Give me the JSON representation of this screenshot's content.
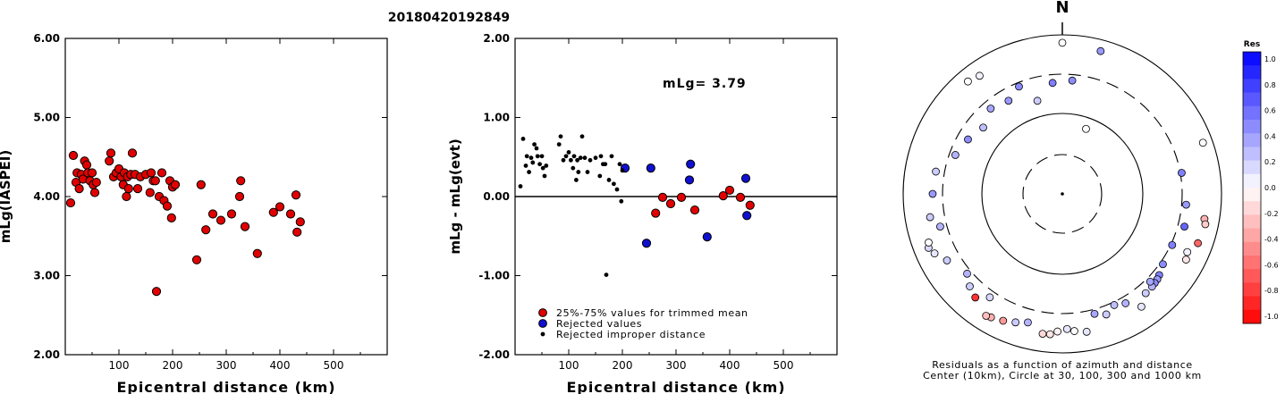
{
  "title": "20180420192849",
  "chart_data": [
    {
      "type": "scatter",
      "xlabel": "Epicentral distance (km)",
      "ylabel": "mLg(IASPEI)",
      "xlim": [
        0,
        600
      ],
      "ylim": [
        2.0,
        6.0
      ],
      "x_ticks": [
        "100",
        "200",
        "300",
        "400",
        "500"
      ],
      "y_ticks": [
        "2.00",
        "3.00",
        "4.00",
        "5.00",
        "6.00"
      ],
      "grid": false,
      "series": [
        {
          "color": "#e00000",
          "points": [
            [
              10,
              3.92
            ],
            [
              15,
              4.52
            ],
            [
              20,
              4.18
            ],
            [
              22,
              4.3
            ],
            [
              26,
              4.1
            ],
            [
              30,
              4.28
            ],
            [
              33,
              4.22
            ],
            [
              36,
              4.45
            ],
            [
              40,
              4.4
            ],
            [
              42,
              4.3
            ],
            [
              46,
              4.2
            ],
            [
              50,
              4.3
            ],
            [
              52,
              4.15
            ],
            [
              55,
              4.05
            ],
            [
              58,
              4.18
            ],
            [
              82,
              4.45
            ],
            [
              85,
              4.55
            ],
            [
              90,
              4.25
            ],
            [
              95,
              4.3
            ],
            [
              100,
              4.35
            ],
            [
              104,
              4.25
            ],
            [
              108,
              4.15
            ],
            [
              110,
              4.3
            ],
            [
              114,
              4.0
            ],
            [
              116,
              4.25
            ],
            [
              118,
              4.1
            ],
            [
              122,
              4.28
            ],
            [
              125,
              4.55
            ],
            [
              130,
              4.28
            ],
            [
              135,
              4.1
            ],
            [
              140,
              4.25
            ],
            [
              150,
              4.28
            ],
            [
              158,
              4.05
            ],
            [
              160,
              4.3
            ],
            [
              164,
              4.2
            ],
            [
              168,
              4.2
            ],
            [
              170,
              2.8
            ],
            [
              175,
              4.0
            ],
            [
              180,
              4.3
            ],
            [
              184,
              3.95
            ],
            [
              190,
              3.88
            ],
            [
              195,
              4.2
            ],
            [
              198,
              3.73
            ],
            [
              200,
              4.12
            ],
            [
              205,
              4.15
            ],
            [
              245,
              3.2
            ],
            [
              253,
              4.15
            ],
            [
              262,
              3.58
            ],
            [
              275,
              3.78
            ],
            [
              290,
              3.7
            ],
            [
              310,
              3.78
            ],
            [
              325,
              4.0
            ],
            [
              327,
              4.2
            ],
            [
              335,
              3.62
            ],
            [
              358,
              3.28
            ],
            [
              388,
              3.8
            ],
            [
              400,
              3.87
            ],
            [
              420,
              3.78
            ],
            [
              430,
              4.02
            ],
            [
              432,
              3.55
            ],
            [
              438,
              3.68
            ]
          ]
        }
      ]
    },
    {
      "type": "scatter",
      "xlabel": "Epicentral distance (km)",
      "ylabel": "mLg - mLg(evt)",
      "xlim": [
        0,
        600
      ],
      "ylim": [
        -2.0,
        2.0
      ],
      "x_ticks": [
        "100",
        "200",
        "300",
        "400",
        "500"
      ],
      "y_ticks": [
        "-2.00",
        "-1.00",
        "0.00",
        "1.00",
        "2.00"
      ],
      "annotation": "mLg= 3.79",
      "zero_line": 0,
      "legend_position": "bottom-left",
      "series": [
        {
          "name": "25%-75% values for trimmed mean",
          "color": "#e00000",
          "marker": "circle",
          "points": [
            [
              262,
              -0.21
            ],
            [
              275,
              -0.01
            ],
            [
              290,
              -0.09
            ],
            [
              310,
              -0.01
            ],
            [
              335,
              -0.17
            ],
            [
              388,
              0.01
            ],
            [
              400,
              0.08
            ],
            [
              420,
              -0.01
            ],
            [
              438,
              -0.11
            ]
          ]
        },
        {
          "name": "Rejected values",
          "color": "#1010d0",
          "marker": "circle",
          "points": [
            [
              205,
              0.36
            ],
            [
              245,
              -0.59
            ],
            [
              253,
              0.36
            ],
            [
              325,
              0.21
            ],
            [
              327,
              0.41
            ],
            [
              358,
              -0.51
            ],
            [
              430,
              0.23
            ],
            [
              432,
              -0.24
            ]
          ]
        },
        {
          "name": "Rejected improper distance",
          "color": "#000000",
          "marker": "dot",
          "points": [
            [
              10,
              0.13
            ],
            [
              15,
              0.73
            ],
            [
              20,
              0.39
            ],
            [
              22,
              0.51
            ],
            [
              26,
              0.31
            ],
            [
              30,
              0.49
            ],
            [
              33,
              0.43
            ],
            [
              36,
              0.66
            ],
            [
              40,
              0.61
            ],
            [
              42,
              0.51
            ],
            [
              46,
              0.41
            ],
            [
              50,
              0.51
            ],
            [
              52,
              0.36
            ],
            [
              55,
              0.26
            ],
            [
              58,
              0.39
            ],
            [
              82,
              0.66
            ],
            [
              85,
              0.76
            ],
            [
              90,
              0.46
            ],
            [
              95,
              0.51
            ],
            [
              100,
              0.56
            ],
            [
              104,
              0.46
            ],
            [
              108,
              0.36
            ],
            [
              110,
              0.51
            ],
            [
              114,
              0.21
            ],
            [
              116,
              0.46
            ],
            [
              118,
              0.31
            ],
            [
              122,
              0.49
            ],
            [
              125,
              0.76
            ],
            [
              130,
              0.49
            ],
            [
              135,
              0.31
            ],
            [
              140,
              0.46
            ],
            [
              150,
              0.49
            ],
            [
              158,
              0.26
            ],
            [
              160,
              0.51
            ],
            [
              164,
              0.41
            ],
            [
              168,
              0.41
            ],
            [
              170,
              -0.99
            ],
            [
              175,
              0.21
            ],
            [
              180,
              0.51
            ],
            [
              184,
              0.16
            ],
            [
              190,
              0.09
            ],
            [
              195,
              0.41
            ],
            [
              198,
              -0.06
            ],
            [
              200,
              0.33
            ]
          ]
        }
      ]
    },
    {
      "type": "polar",
      "north_label": "N",
      "caption_line1": "Residuals as a function of azimuth and distance",
      "caption_line2": "Center (10km), Circle at 30, 100, 300 and 1000 km",
      "colorbar_title": "Res",
      "colorbar_ticks": [
        "1.0",
        "0.8",
        "0.6",
        "0.4",
        "0.2",
        "0.0",
        "-0.2",
        "-0.4",
        "-0.6",
        "-0.8",
        "-1.0"
      ],
      "colorbar_range": [
        -1.0,
        1.0
      ],
      "rings_km": [
        30,
        100,
        300,
        1000
      ],
      "stations": [
        {
          "az": 0,
          "dist": 1000,
          "res": 0.0
        },
        {
          "az": 15,
          "dist": 900,
          "res": 0.4
        },
        {
          "az": -40,
          "dist": 870,
          "res": 0.0
        },
        {
          "az": -35,
          "dist": 800,
          "res": 0.05
        },
        {
          "az": 70,
          "dist": 950,
          "res": 0.0
        },
        {
          "az": 100,
          "dist": 800,
          "res": -0.3
        },
        {
          "az": 102,
          "dist": 850,
          "res": -0.2
        },
        {
          "az": 110,
          "dist": 800,
          "res": -0.6
        },
        {
          "az": 115,
          "dist": 650,
          "res": 0.05
        },
        {
          "az": 118,
          "dist": 700,
          "res": -0.1
        },
        {
          "az": 130,
          "dist": 450,
          "res": 0.5
        },
        {
          "az": 132,
          "dist": 470,
          "res": 0.4
        },
        {
          "az": 134,
          "dist": 480,
          "res": 0.45
        },
        {
          "az": 136,
          "dist": 490,
          "res": 0.3
        },
        {
          "az": 140,
          "dist": 500,
          "res": 0.2
        },
        {
          "az": 145,
          "dist": 650,
          "res": 0.1
        },
        {
          "az": 150,
          "dist": 450,
          "res": 0.3
        },
        {
          "az": 155,
          "dist": 400,
          "res": 0.25
        },
        {
          "az": 160,
          "dist": 480,
          "res": 0.2
        },
        {
          "az": 165,
          "dist": 420,
          "res": 0.35
        },
        {
          "az": 170,
          "dist": 700,
          "res": 0.1
        },
        {
          "az": 175,
          "dist": 650,
          "res": 0.0
        },
        {
          "az": 178,
          "dist": 600,
          "res": 0.1
        },
        {
          "az": 182,
          "dist": 650,
          "res": -0.05
        },
        {
          "az": 185,
          "dist": 720,
          "res": -0.1
        },
        {
          "az": 188,
          "dist": 730,
          "res": -0.15
        },
        {
          "az": 195,
          "dist": 560,
          "res": 0.3
        },
        {
          "az": 200,
          "dist": 630,
          "res": 0.2
        },
        {
          "az": 205,
          "dist": 700,
          "res": -0.4
        },
        {
          "az": 210,
          "dist": 760,
          "res": -0.3
        },
        {
          "az": 212,
          "dist": 790,
          "res": -0.25
        },
        {
          "az": 215,
          "dist": 450,
          "res": 0.15
        },
        {
          "az": 220,
          "dist": 600,
          "res": -0.8
        },
        {
          "az": 225,
          "dist": 520,
          "res": 0.2
        },
        {
          "az": 230,
          "dist": 420,
          "res": 0.3
        },
        {
          "az": 240,
          "dist": 560,
          "res": 0.2
        },
        {
          "az": 245,
          "dist": 720,
          "res": 0.1
        },
        {
          "az": 248,
          "dist": 800,
          "res": 0.15
        },
        {
          "az": 250,
          "dist": 750,
          "res": 0.0
        },
        {
          "az": 255,
          "dist": 450,
          "res": 0.3
        },
        {
          "az": 260,
          "dist": 580,
          "res": 0.2
        },
        {
          "az": 270,
          "dist": 500,
          "res": 0.4
        },
        {
          "az": 280,
          "dist": 480,
          "res": 0.2
        },
        {
          "az": 290,
          "dist": 300,
          "res": 0.3
        },
        {
          "az": 300,
          "dist": 260,
          "res": 0.45
        },
        {
          "az": 310,
          "dist": 220,
          "res": 0.25
        },
        {
          "az": 320,
          "dist": 280,
          "res": 0.35
        },
        {
          "az": 330,
          "dist": 250,
          "res": 0.4
        },
        {
          "az": 338,
          "dist": 320,
          "res": 0.45
        },
        {
          "az": 345,
          "dist": 180,
          "res": 0.2
        },
        {
          "az": 355,
          "dist": 280,
          "res": 0.5
        },
        {
          "az": 5,
          "dist": 300,
          "res": 0.45
        },
        {
          "az": 20,
          "dist": 80,
          "res": 0.0
        },
        {
          "az": 80,
          "dist": 380,
          "res": 0.5
        },
        {
          "az": 95,
          "dist": 420,
          "res": 0.4
        },
        {
          "az": 105,
          "dist": 450,
          "res": 0.6
        },
        {
          "az": 115,
          "dist": 380,
          "res": 0.5
        },
        {
          "az": 125,
          "dist": 400,
          "res": 0.45
        },
        {
          "az": 135,
          "dist": 420,
          "res": 0.35
        }
      ]
    }
  ]
}
